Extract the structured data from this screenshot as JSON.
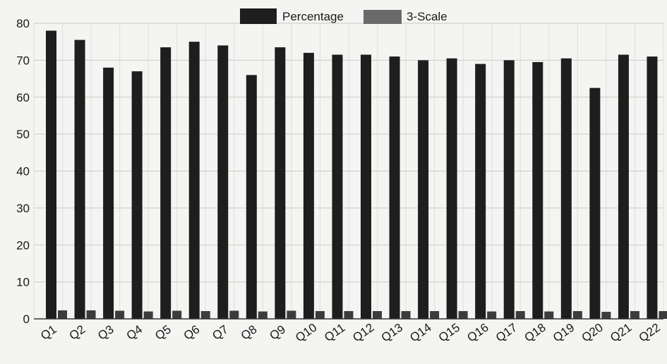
{
  "chart_data": {
    "type": "bar",
    "title": "",
    "xlabel": "",
    "ylabel": "",
    "ylim": [
      0,
      80
    ],
    "yticks": [
      0,
      10,
      20,
      30,
      40,
      50,
      60,
      70,
      80
    ],
    "grid": true,
    "legend_position": "top-center",
    "categories": [
      "Q1",
      "Q2",
      "Q3",
      "Q4",
      "Q5",
      "Q6",
      "Q7",
      "Q8",
      "Q9",
      "Q10",
      "Q11",
      "Q12",
      "Q13",
      "Q14",
      "Q15",
      "Q16",
      "Q17",
      "Q18",
      "Q19",
      "Q20",
      "Q21",
      "Q22"
    ],
    "series": [
      {
        "name": "Percentage",
        "color": "#1e1e1e",
        "values": [
          78,
          75.5,
          68,
          67,
          73.5,
          75,
          74,
          66,
          73.5,
          72,
          71.5,
          71.5,
          71,
          70,
          70.5,
          69,
          70,
          69.5,
          70.5,
          62.5,
          71.5,
          71
        ]
      },
      {
        "name": "3-Scale",
        "color": "#3c3c3c",
        "values": [
          2.3,
          2.3,
          2.2,
          2.0,
          2.2,
          2.1,
          2.2,
          2.0,
          2.2,
          2.1,
          2.1,
          2.1,
          2.1,
          2.1,
          2.1,
          2.0,
          2.1,
          2.0,
          2.1,
          1.9,
          2.1,
          2.1
        ]
      }
    ]
  }
}
